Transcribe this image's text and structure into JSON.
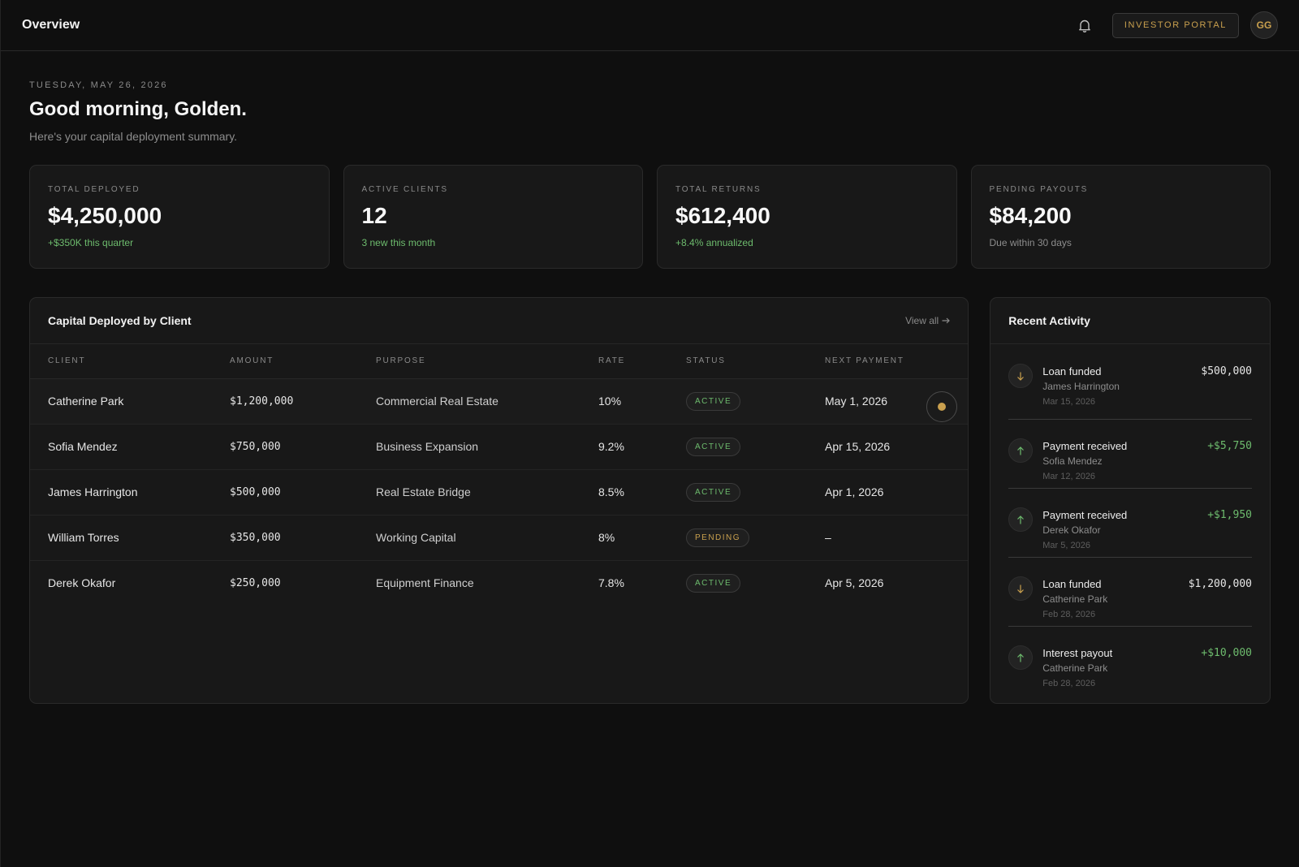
{
  "header": {
    "title": "Overview",
    "portal_label": "INVESTOR PORTAL",
    "avatar_initials": "GG"
  },
  "intro": {
    "date": "TUESDAY, MAY 26, 2026",
    "greeting": "Good morning, Golden.",
    "subtitle": "Here's your capital deployment summary."
  },
  "stats": [
    {
      "label": "TOTAL DEPLOYED",
      "value": "$4,250,000",
      "note": "+$350K this quarter"
    },
    {
      "label": "ACTIVE CLIENTS",
      "value": "12",
      "note": "3 new this month"
    },
    {
      "label": "TOTAL RETURNS",
      "value": "$612,400",
      "note": "+8.4% annualized"
    },
    {
      "label": "PENDING PAYOUTS",
      "value": "$84,200",
      "note": "Due within 30 days"
    }
  ],
  "table": {
    "title": "Capital Deployed by Client",
    "view_all": "View all",
    "columns": [
      "CLIENT",
      "AMOUNT",
      "PURPOSE",
      "RATE",
      "STATUS",
      "NEXT PAYMENT"
    ],
    "rows": [
      {
        "client": "Catherine Park",
        "amount": "$1,200,000",
        "purpose": "Commercial Real Estate",
        "rate": "10%",
        "status": "ACTIVE",
        "next": "May 1, 2026"
      },
      {
        "client": "Sofia Mendez",
        "amount": "$750,000",
        "purpose": "Business Expansion",
        "rate": "9.2%",
        "status": "ACTIVE",
        "next": "Apr 15, 2026"
      },
      {
        "client": "James Harrington",
        "amount": "$500,000",
        "purpose": "Real Estate Bridge",
        "rate": "8.5%",
        "status": "ACTIVE",
        "next": "Apr 1, 2026"
      },
      {
        "client": "William Torres",
        "amount": "$350,000",
        "purpose": "Working Capital",
        "rate": "8%",
        "status": "PENDING",
        "next": "–"
      },
      {
        "client": "Derek Okafor",
        "amount": "$250,000",
        "purpose": "Equipment Finance",
        "rate": "7.8%",
        "status": "ACTIVE",
        "next": "Apr 5, 2026"
      }
    ]
  },
  "activity": {
    "title": "Recent Activity",
    "items": [
      {
        "title": "Loan funded",
        "who": "James Harrington",
        "date": "Mar 15, 2026",
        "amount": "$500,000",
        "direction": "down"
      },
      {
        "title": "Payment received",
        "who": "Sofia Mendez",
        "date": "Mar 12, 2026",
        "amount": "+$5,750",
        "direction": "up"
      },
      {
        "title": "Payment received",
        "who": "Derek Okafor",
        "date": "Mar 5, 2026",
        "amount": "+$1,950",
        "direction": "up"
      },
      {
        "title": "Loan funded",
        "who": "Catherine Park",
        "date": "Feb 28, 2026",
        "amount": "$1,200,000",
        "direction": "down"
      },
      {
        "title": "Interest payout",
        "who": "Catherine Park",
        "date": "Feb 28, 2026",
        "amount": "+$10,000",
        "direction": "up"
      }
    ]
  },
  "colors": {
    "accent_gold": "#c9a04e",
    "positive_green": "#6dbb6d",
    "background": "#0f0f0f",
    "card": "#181818"
  },
  "icons": {
    "notifications": "bell-icon",
    "view_all": "arrow-right-icon",
    "activity_down": "arrow-down-icon",
    "activity_up": "arrow-up-icon"
  }
}
